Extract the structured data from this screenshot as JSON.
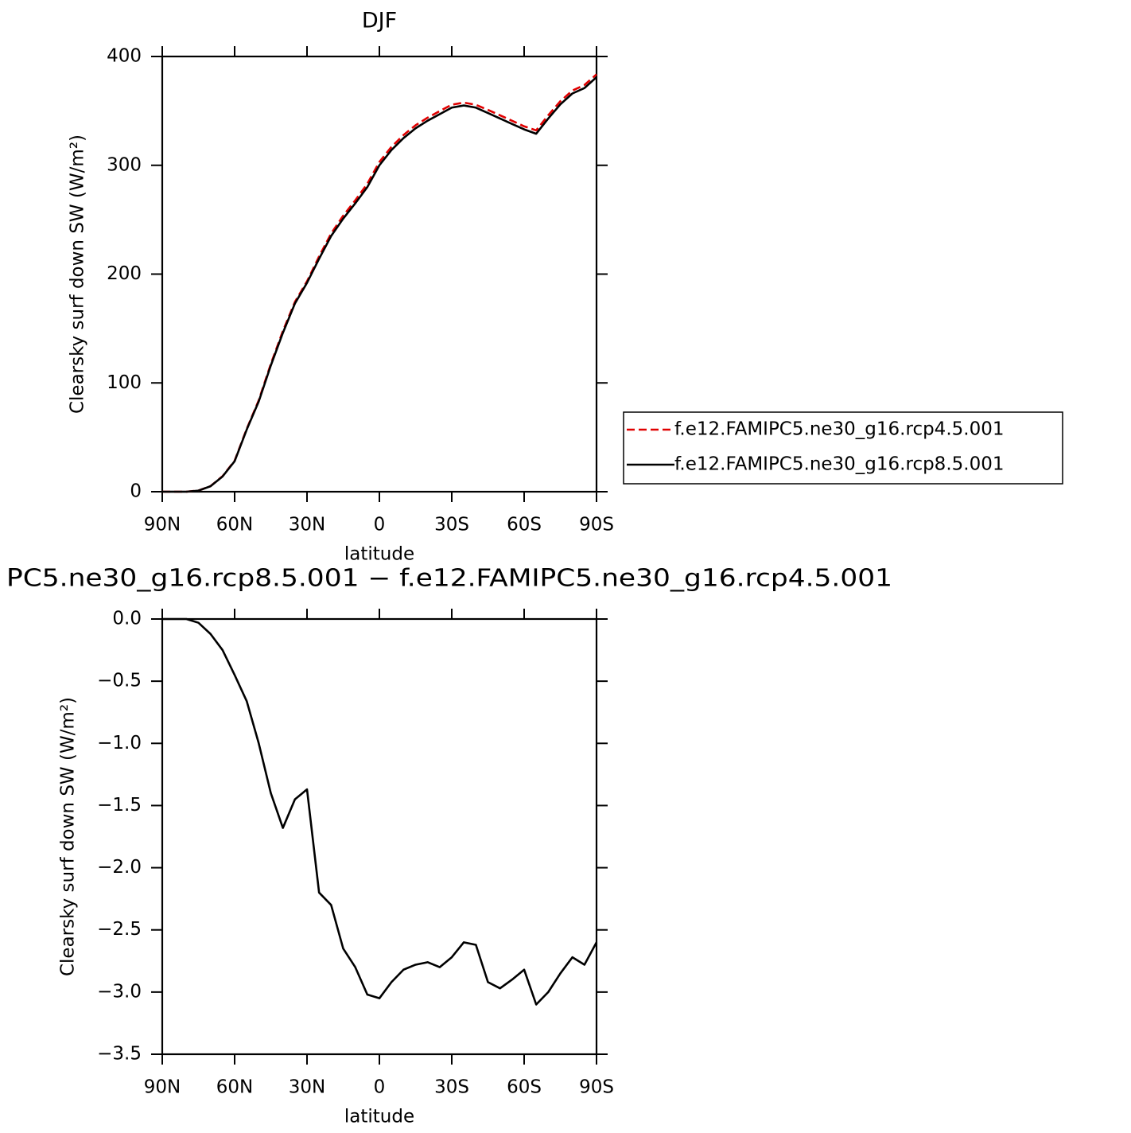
{
  "chart_data": [
    {
      "type": "line",
      "title": "DJF",
      "xlabel": "latitude",
      "ylabel": "Clearsky surf down SW (W/m²)",
      "x": [
        90,
        85,
        80,
        75,
        70,
        65,
        60,
        55,
        50,
        45,
        40,
        35,
        30,
        25,
        20,
        15,
        10,
        5,
        0,
        -5,
        -10,
        -15,
        -20,
        -25,
        -30,
        -35,
        -40,
        -45,
        -50,
        -55,
        -60,
        -65,
        -70,
        -75,
        -80,
        -85,
        -90
      ],
      "series": [
        {
          "name": "f.e12.FAMIPC5.ne30_g16.rcp4.5.001",
          "color": "#e00000",
          "dash": true,
          "values": [
            0,
            0,
            0,
            1.03,
            5.12,
            14.25,
            28.45,
            57.66,
            84,
            117.4,
            147.68,
            174.45,
            193.37,
            216.2,
            237.3,
            253.65,
            267.8,
            283.02,
            303.05,
            316.92,
            327.82,
            336.78,
            343.76,
            349.8,
            355.72,
            357.6,
            355.62,
            350.92,
            345.97,
            340.9,
            335.82,
            332.1,
            346,
            358.85,
            368.72,
            373.78,
            383.6
          ]
        },
        {
          "name": "f.e12.FAMIPC5.ne30_g16.rcp8.5.001",
          "color": "#000000",
          "dash": false,
          "values": [
            0,
            0,
            0,
            1,
            5,
            14,
            28,
            57,
            83,
            116,
            146,
            173,
            192,
            214,
            235,
            251,
            265,
            280,
            300,
            314,
            325,
            334,
            341,
            347,
            353,
            355,
            353,
            348,
            343,
            338,
            333,
            329,
            343,
            356,
            366,
            371,
            381
          ]
        }
      ],
      "xlim": [
        90,
        -90
      ],
      "xticks": [
        {
          "value": 90,
          "label": "90N"
        },
        {
          "value": 60,
          "label": "60N"
        },
        {
          "value": 30,
          "label": "30N"
        },
        0,
        {
          "value": -30,
          "label": "30S"
        },
        {
          "value": -60,
          "label": "60S"
        },
        {
          "value": -90,
          "label": "90S"
        }
      ],
      "ylim": [
        0,
        400
      ],
      "yticks": [
        0,
        100,
        200,
        300,
        400
      ],
      "legend": "right"
    },
    {
      "type": "line",
      "title": "PC5.ne30_g16.rcp8.5.001 − f.e12.FAMIPC5.ne30_g16.rcp4.5.001",
      "xlabel": "latitude",
      "ylabel": "Clearsky surf down SW (W/m²)",
      "x": [
        90,
        85,
        80,
        75,
        70,
        65,
        60,
        55,
        50,
        45,
        40,
        35,
        30,
        25,
        20,
        15,
        10,
        5,
        0,
        -5,
        -10,
        -15,
        -20,
        -25,
        -30,
        -35,
        -40,
        -45,
        -50,
        -55,
        -60,
        -65,
        -70,
        -75,
        -80,
        -85,
        -90
      ],
      "values": [
        0,
        0,
        0,
        -0.03,
        -0.12,
        -0.25,
        -0.45,
        -0.66,
        -1.0,
        -1.4,
        -1.68,
        -1.45,
        -1.37,
        -2.2,
        -2.3,
        -2.65,
        -2.8,
        -3.02,
        -3.05,
        -2.92,
        -2.82,
        -2.78,
        -2.76,
        -2.8,
        -2.72,
        -2.6,
        -2.62,
        -2.92,
        -2.97,
        -2.9,
        -2.82,
        -3.1,
        -3.0,
        -2.85,
        -2.72,
        -2.78,
        -2.6
      ],
      "color": "#000000",
      "xlim": [
        90,
        -90
      ],
      "xticks": [
        {
          "value": 90,
          "label": "90N"
        },
        {
          "value": 60,
          "label": "60N"
        },
        {
          "value": 30,
          "label": "30N"
        },
        0,
        {
          "value": -30,
          "label": "30S"
        },
        {
          "value": -60,
          "label": "60S"
        },
        {
          "value": -90,
          "label": "90S"
        }
      ],
      "ylim": [
        -3.5,
        0
      ],
      "yticks": [
        {
          "value": -3.5,
          "label": "−3.5"
        },
        {
          "value": -3.0,
          "label": "−3.0"
        },
        {
          "value": -2.5,
          "label": "−2.5"
        },
        {
          "value": -2.0,
          "label": "−2.0"
        },
        {
          "value": -1.5,
          "label": "−1.5"
        },
        {
          "value": -1.0,
          "label": "−1.0"
        },
        {
          "value": -0.5,
          "label": "−0.5"
        },
        {
          "value": 0,
          "label": "0.0"
        }
      ]
    }
  ]
}
